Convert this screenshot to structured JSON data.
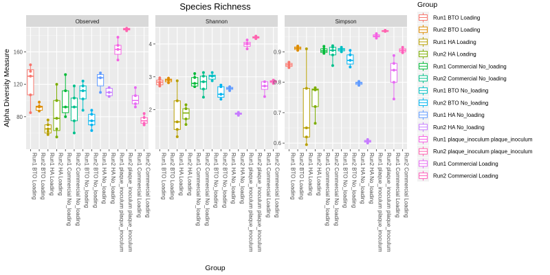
{
  "chart_data": {
    "type": "boxplot",
    "title": "Species Richness",
    "xlabel": "Group",
    "ylabel": "Alpha Diversity Measure",
    "legend": {
      "title": "Group",
      "placement": "right"
    },
    "grid": true,
    "groups": [
      {
        "name": "Run1 BTO Loading",
        "color": "#F8766D"
      },
      {
        "name": "Run2 BTO Loading",
        "color": "#DE8C00"
      },
      {
        "name": "Run1 HA Loading",
        "color": "#B79F00"
      },
      {
        "name": "Run2 HA Loading",
        "color": "#7CAE00"
      },
      {
        "name": "Run1 Commercial No_loading",
        "color": "#00BA38"
      },
      {
        "name": "Run2 Commercial No_loading",
        "color": "#00C08B"
      },
      {
        "name": "Run1 BTO No_loading",
        "color": "#00BFC4"
      },
      {
        "name": "Run2 BTO No_loading",
        "color": "#00B4F0"
      },
      {
        "name": "Run1 HA No_loading",
        "color": "#619CFF"
      },
      {
        "name": "Run2 HA No_loading",
        "color": "#C77CFF"
      },
      {
        "name": "Run1 plaque_inoculum plaque_inoculum",
        "color": "#F564E3"
      },
      {
        "name": "Run2 plaque_inoculum plaque_inoculum",
        "color": "#FF64B0"
      },
      {
        "name": "Run1 Commercial Loading",
        "color": "#E76BF3"
      },
      {
        "name": "Run2 Commercial Loading",
        "color": "#FF62BC"
      }
    ],
    "x_order": [
      0,
      1,
      2,
      3,
      4,
      5,
      6,
      7,
      8,
      9,
      10,
      11,
      12,
      13
    ],
    "x_labels": [
      "Run1 BTO Loading",
      "Run2 BTO Loading",
      "Run1 HA Loading",
      "Run2 HA Loading",
      "Run1 Commercial No_loading",
      "Run2 Commercial No_loading",
      "Run1 BTO No_loading",
      "Run2 BTO No_loading",
      "Run1 HA No_loading",
      "Run2 HA No_loading",
      "Run1 plaque_inoculum plaque_inoculum",
      "Run2 plaque_inoculum plaque_inoculum",
      "Run1 Commercial Loading",
      "Run2 Commercial Loading"
    ],
    "facets": [
      {
        "name": "Observed",
        "ylim": [
          40,
          190
        ],
        "yticks": [
          80,
          120,
          160
        ],
        "boxes": [
          {
            "min": 85,
            "q1": 107,
            "med": 130,
            "q3": 138,
            "max": 144,
            "pts": [
              85,
              107,
              130,
              136,
              144
            ]
          },
          {
            "min": 87,
            "q1": 88,
            "med": 92,
            "q3": 93,
            "max": 98,
            "pts": [
              87,
              92,
              93,
              98
            ]
          },
          {
            "min": 58,
            "q1": 60,
            "med": 65,
            "q3": 70,
            "max": 76,
            "pts": [
              58,
              62,
              65,
              70,
              76
            ]
          },
          {
            "min": 55,
            "q1": 63,
            "med": 78,
            "q3": 100,
            "max": 120,
            "pts": [
              55,
              65,
              78,
              100,
              120
            ]
          },
          {
            "min": 80,
            "q1": 85,
            "med": 92,
            "q3": 112,
            "max": 132,
            "pts": [
              80,
              92,
              112,
              132
            ]
          },
          {
            "min": 60,
            "q1": 75,
            "med": 92,
            "q3": 103,
            "max": 118,
            "pts": [
              60,
              75,
              92,
              103,
              118
            ]
          },
          {
            "min": 88,
            "q1": 102,
            "med": 112,
            "q3": 118,
            "max": 124,
            "pts": [
              88,
              102,
              112,
              118,
              124
            ]
          },
          {
            "min": 63,
            "q1": 70,
            "med": 75,
            "q3": 83,
            "max": 88,
            "pts": [
              63,
              70,
              75,
              83,
              88
            ]
          },
          {
            "min": 110,
            "q1": 118,
            "med": 128,
            "q3": 132,
            "max": 134,
            "pts": [
              110,
              128,
              134
            ]
          },
          {
            "min": 105,
            "q1": 106,
            "med": 110,
            "q3": 115,
            "max": 116,
            "pts": [
              105,
              110,
              116
            ]
          },
          {
            "min": 150,
            "q1": 157,
            "med": 163,
            "q3": 168,
            "max": 178,
            "pts": [
              150,
              163,
              168,
              178
            ]
          },
          {
            "min": 186,
            "q1": 187,
            "med": 188,
            "q3": 189,
            "max": 189,
            "pts": [
              186,
              188,
              189
            ]
          },
          {
            "min": 92,
            "q1": 96,
            "med": 100,
            "q3": 106,
            "max": 116,
            "pts": [
              92,
              96,
              106,
              116
            ]
          },
          {
            "min": 70,
            "q1": 72,
            "med": 75,
            "q3": 79,
            "max": 84,
            "pts": [
              70,
              72,
              79,
              84
            ]
          }
        ]
      },
      {
        "name": "Shannon",
        "ylim": [
          0.8,
          4.5
        ],
        "yticks": [
          2,
          3,
          4
        ],
        "boxes": [
          {
            "min": 2.72,
            "q1": 2.76,
            "med": 2.84,
            "q3": 2.9,
            "max": 2.97,
            "pts": [
              2.72,
              2.8,
              2.84,
              2.93,
              2.97
            ]
          },
          {
            "min": 2.82,
            "q1": 2.85,
            "med": 2.9,
            "q3": 2.93,
            "max": 2.96,
            "pts": [
              2.82,
              2.9,
              2.96
            ]
          },
          {
            "min": 1.18,
            "q1": 1.4,
            "med": 1.63,
            "q3": 2.27,
            "max": 2.88,
            "pts": [
              1.18,
              1.4,
              1.63,
              2.27,
              2.88
            ]
          },
          {
            "min": 1.55,
            "q1": 1.72,
            "med": 1.9,
            "q3": 2.03,
            "max": 2.15,
            "pts": [
              1.55,
              1.72,
              2.03,
              2.15
            ]
          },
          {
            "min": 2.7,
            "q1": 2.72,
            "med": 2.8,
            "q3": 2.98,
            "max": 3.1,
            "pts": [
              2.7,
              2.8,
              2.98,
              3.1
            ]
          },
          {
            "min": 2.38,
            "q1": 2.63,
            "med": 2.85,
            "q3": 3.02,
            "max": 3.13,
            "pts": [
              2.38,
              2.63,
              2.85,
              3.02,
              3.13
            ]
          },
          {
            "min": 2.88,
            "q1": 2.93,
            "med": 3.02,
            "q3": 3.05,
            "max": 3.13,
            "pts": [
              2.88,
              3.02,
              3.13
            ]
          },
          {
            "min": 2.32,
            "q1": 2.38,
            "med": 2.47,
            "q3": 2.7,
            "max": 2.75,
            "pts": [
              2.32,
              2.47,
              2.7,
              2.75
            ]
          },
          {
            "min": 2.58,
            "q1": 2.62,
            "med": 2.65,
            "q3": 2.68,
            "max": 2.7,
            "pts": [
              2.58,
              2.65,
              2.7
            ]
          },
          {
            "min": 1.83,
            "q1": 1.86,
            "med": 1.88,
            "q3": 1.9,
            "max": 1.92,
            "pts": [
              1.83,
              1.88,
              1.92
            ]
          },
          {
            "min": 3.85,
            "q1": 3.93,
            "med": 4.0,
            "q3": 4.05,
            "max": 4.12,
            "pts": [
              3.85,
              4.0,
              4.12
            ]
          },
          {
            "min": 4.16,
            "q1": 4.18,
            "med": 4.2,
            "q3": 4.22,
            "max": 4.24,
            "pts": [
              4.16,
              4.2,
              4.24
            ]
          },
          {
            "min": 2.4,
            "q1": 2.62,
            "med": 2.72,
            "q3": 2.85,
            "max": 2.88,
            "pts": [
              2.4,
              2.72,
              2.85
            ]
          },
          {
            "min": 2.8,
            "q1": 2.83,
            "med": 2.86,
            "q3": 2.88,
            "max": 2.9,
            "pts": [
              2.8,
              2.86,
              2.9
            ]
          }
        ]
      },
      {
        "name": "Simpson",
        "ylim": [
          0.58,
          0.98
        ],
        "yticks": [
          0.6,
          0.7,
          0.8,
          0.9
        ],
        "boxes": [
          {
            "min": 0.848,
            "q1": 0.852,
            "med": 0.857,
            "q3": 0.862,
            "max": 0.866,
            "pts": [
              0.848,
              0.857,
              0.866
            ]
          },
          {
            "min": 0.905,
            "q1": 0.908,
            "med": 0.912,
            "q3": 0.916,
            "max": 0.919,
            "pts": [
              0.905,
              0.912,
              0.919
            ]
          },
          {
            "min": 0.595,
            "q1": 0.62,
            "med": 0.65,
            "q3": 0.78,
            "max": 0.91,
            "pts": [
              0.595,
              0.62,
              0.65,
              0.78,
              0.91
            ]
          },
          {
            "min": 0.665,
            "q1": 0.72,
            "med": 0.775,
            "q3": 0.778,
            "max": 0.782,
            "pts": [
              0.665,
              0.72,
              0.775,
              0.782
            ]
          },
          {
            "min": 0.895,
            "q1": 0.898,
            "med": 0.903,
            "q3": 0.91,
            "max": 0.918,
            "pts": [
              0.895,
              0.903,
              0.91,
              0.918
            ]
          },
          {
            "min": 0.855,
            "q1": 0.89,
            "med": 0.905,
            "q3": 0.915,
            "max": 0.92,
            "pts": [
              0.855,
              0.89,
              0.905,
              0.915,
              0.92
            ]
          },
          {
            "min": 0.9,
            "q1": 0.903,
            "med": 0.907,
            "q3": 0.911,
            "max": 0.915,
            "pts": [
              0.9,
              0.907,
              0.915
            ]
          },
          {
            "min": 0.85,
            "q1": 0.86,
            "med": 0.872,
            "q3": 0.89,
            "max": 0.905,
            "pts": [
              0.85,
              0.872,
              0.89,
              0.905
            ]
          },
          {
            "min": 0.79,
            "q1": 0.793,
            "med": 0.797,
            "q3": 0.8,
            "max": 0.803,
            "pts": [
              0.79,
              0.797,
              0.803
            ]
          },
          {
            "min": 0.6,
            "q1": 0.603,
            "med": 0.606,
            "q3": 0.609,
            "max": 0.612,
            "pts": [
              0.6,
              0.606,
              0.612
            ]
          },
          {
            "min": 0.945,
            "q1": 0.949,
            "med": 0.952,
            "q3": 0.956,
            "max": 0.96,
            "pts": [
              0.945,
              0.952,
              0.96
            ]
          },
          {
            "min": 0.967,
            "q1": 0.968,
            "med": 0.969,
            "q3": 0.97,
            "max": 0.971,
            "pts": [
              0.967,
              0.969,
              0.971
            ]
          },
          {
            "min": 0.745,
            "q1": 0.8,
            "med": 0.84,
            "q3": 0.862,
            "max": 0.888,
            "pts": [
              0.745,
              0.8,
              0.84,
              0.862,
              0.888
            ]
          },
          {
            "min": 0.897,
            "q1": 0.9,
            "med": 0.905,
            "q3": 0.91,
            "max": 0.915,
            "pts": [
              0.897,
              0.905,
              0.915
            ]
          }
        ]
      }
    ]
  }
}
